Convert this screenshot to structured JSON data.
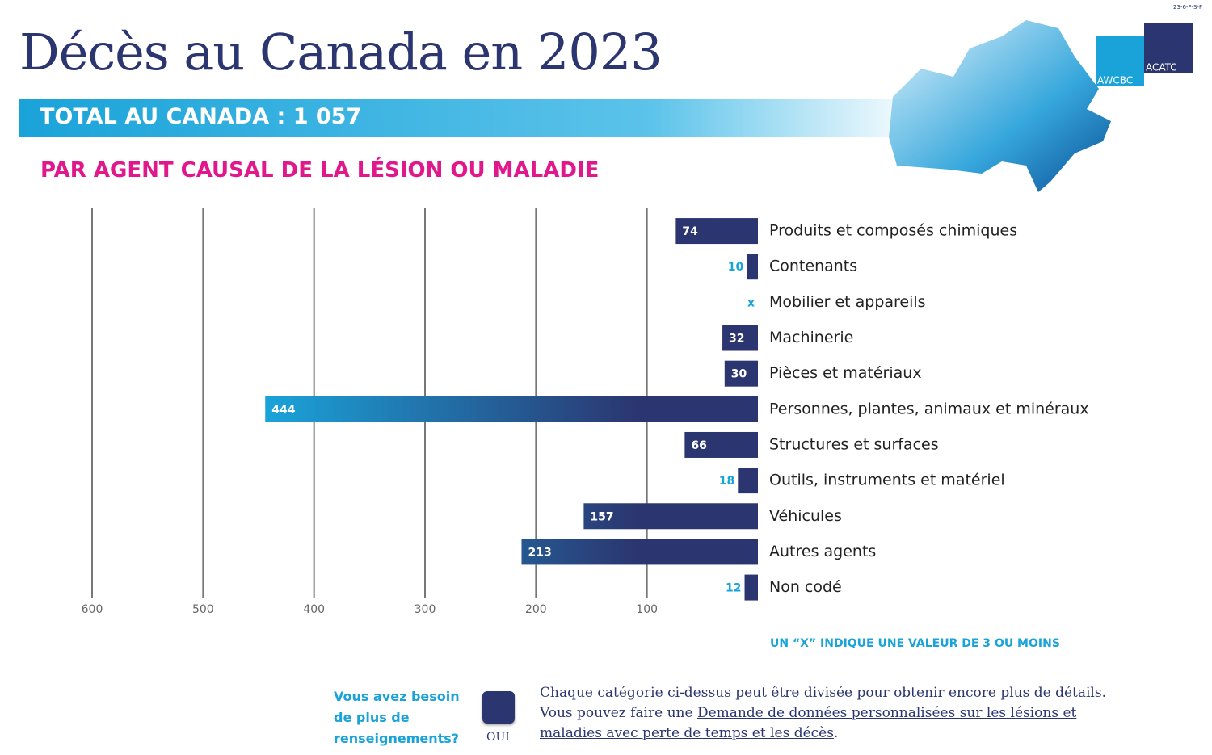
{
  "chart_data": {
    "type": "hbar-left",
    "categories": [
      "Produits et composés chimiques",
      "Contenants",
      "Mobilier et appareils",
      "Machinerie",
      "Pièces et matériaux",
      "Personnes, plantes, animaux et minéraux",
      "Structures et surfaces",
      "Outils, instruments et matériel",
      "Véhicules",
      "Autres agents",
      "Non codé"
    ],
    "values": [
      74,
      10,
      null,
      32,
      30,
      444,
      66,
      18,
      157,
      213,
      12
    ],
    "value_labels": [
      "74",
      "10",
      "x",
      "32",
      "30",
      "444",
      "66",
      "18",
      "157",
      "213",
      "12"
    ],
    "color": [
      "#2b3670",
      "#1aa3d9"
    ],
    "xlim": [
      0,
      600
    ],
    "xticks": [
      100,
      200,
      300,
      400,
      500,
      600
    ],
    "grid": true,
    "note": "UN “X” INDIQUE UNE VALEUR DE 3 OU MOINS"
  },
  "header": {
    "code": "23-6-F-S-F",
    "title": "Décès au Canada en 2023",
    "total": "TOTAL AU CANADA : 1 057",
    "subtitle": "PAR AGENT CAUSAL DE LA LÉSION OU MALADIE",
    "logo_left": "AWCBC",
    "logo_right": "ACATC"
  },
  "footer": {
    "question": "Vous avez besoin de plus de renseignements?",
    "button": "OUI",
    "line1": "Chaque catégorie ci-dessus peut être divisée pour obtenir encore plus de détails.",
    "text_before": "Vous pouvez faire une ",
    "link": "Demande de données personnalisées sur les lésions et maladies avec perte de temps et les décès",
    "text_after": "."
  }
}
